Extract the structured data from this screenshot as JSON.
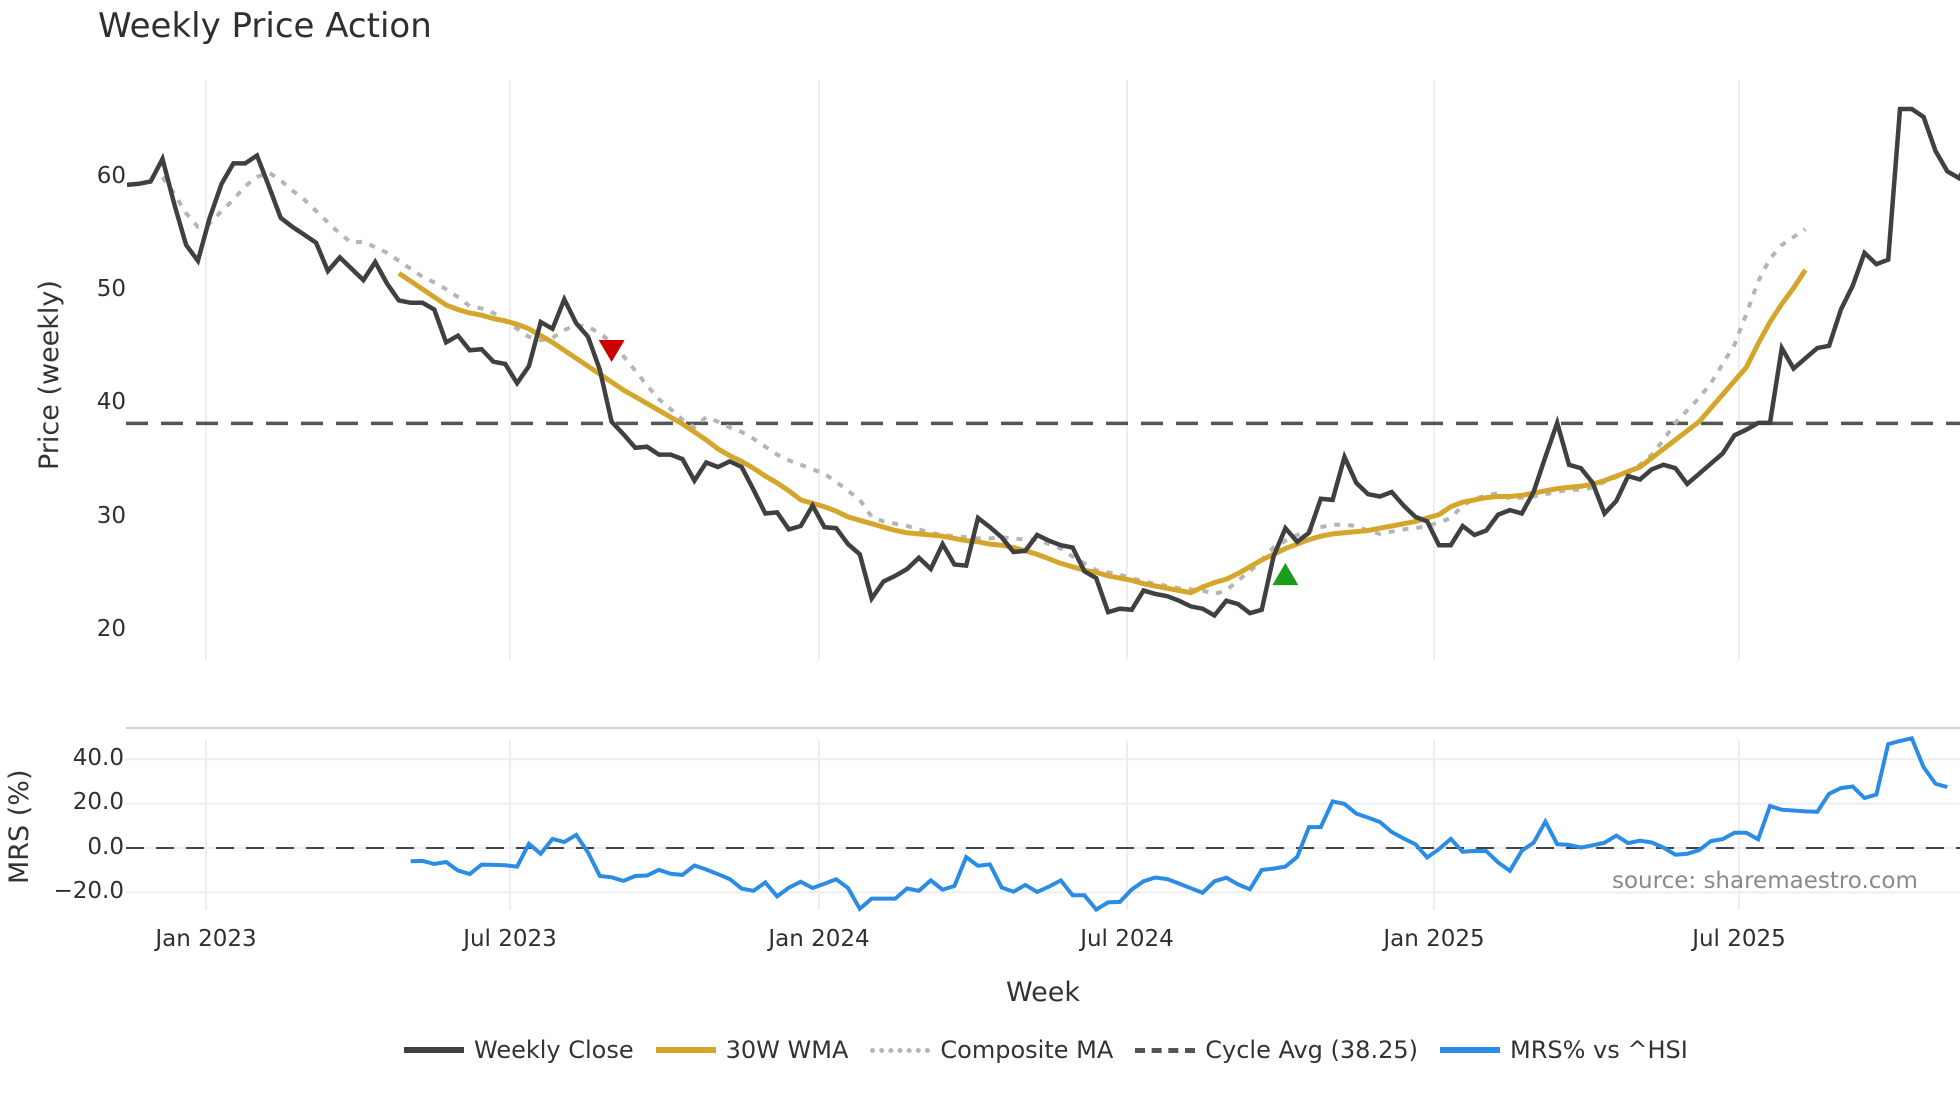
{
  "title": "Weekly Price Action",
  "source_label": "source: sharemaestro.com",
  "price_panel": {
    "ylabel": "Price (weekly)",
    "yticks": [
      "60",
      "50",
      "40",
      "30",
      "20"
    ]
  },
  "mrs_panel": {
    "ylabel": "MRS (%)",
    "yticks": [
      "40.0",
      "20.0",
      "0.0",
      "−20.0"
    ]
  },
  "xaxis": {
    "label": "Week",
    "ticks": [
      "Jan 2023",
      "Jul 2023",
      "Jan 2024",
      "Jul 2024",
      "Jan 2025",
      "Jul 2025"
    ]
  },
  "legend": [
    {
      "label": "Weekly Close",
      "color": "#404040",
      "style": "solid"
    },
    {
      "label": "30W WMA",
      "color": "#d4a72c",
      "style": "solid"
    },
    {
      "label": "Composite MA",
      "color": "#b5b5b5",
      "style": "dotted"
    },
    {
      "label": "Cycle Avg (38.25)",
      "color": "#555555",
      "style": "dashed"
    },
    {
      "label": "MRS% vs ^HSI",
      "color": "#2b8ce6",
      "style": "solid"
    }
  ],
  "chart_data": [
    {
      "type": "line",
      "title": "Weekly Price Action",
      "xlabel": "Week",
      "ylabel": "Price (weekly)",
      "ylim": [
        18.5,
        67
      ],
      "x_ticks": [
        "Jan 2023",
        "Jul 2023",
        "Jan 2024",
        "Jul 2024",
        "Jan 2025",
        "Jul 2025"
      ],
      "grid": "vertical",
      "series": [
        {
          "name": "Weekly Close",
          "start_week": 0,
          "values": [
            59.3,
            59.4,
            59.6,
            61.6,
            57.6,
            54.0,
            52.6,
            56.4,
            59.4,
            61.2,
            61.2,
            61.9,
            59.2,
            56.4,
            55.6,
            54.9,
            54.2,
            51.7,
            52.9,
            51.9,
            50.9,
            52.5,
            50.6,
            49.1,
            48.9,
            48.9,
            48.3,
            45.4,
            46.0,
            44.7,
            44.8,
            43.7,
            43.5,
            41.8,
            43.3,
            47.2,
            46.6,
            49.2,
            47.1,
            45.9,
            43.0,
            38.4,
            37.3,
            36.1,
            36.2,
            35.5,
            35.5,
            35.1,
            33.2,
            34.8,
            34.4,
            34.9,
            34.4,
            32.4,
            30.3,
            30.4,
            28.9,
            29.2,
            31.0,
            29.1,
            29.0,
            27.6,
            26.7,
            22.8,
            24.3,
            24.8,
            25.4,
            26.4,
            25.4,
            27.6,
            25.8,
            25.7,
            29.9,
            29.1,
            28.2,
            26.9,
            27.0,
            28.4,
            27.9,
            27.5,
            27.3,
            25.2,
            24.6,
            21.6,
            21.9,
            21.8,
            23.5,
            23.2,
            23.0,
            22.6,
            22.1,
            21.9,
            21.3,
            22.6,
            22.3,
            21.5,
            21.8,
            26.5,
            29.0,
            27.8,
            28.6,
            31.6,
            31.5,
            35.3,
            33.0,
            32.0,
            31.8,
            32.2,
            31.0,
            30.0,
            29.6,
            27.5,
            27.5,
            29.2,
            28.4,
            28.8,
            30.2,
            30.6,
            30.3,
            32.2,
            35.3,
            38.3,
            34.6,
            34.3,
            33.0,
            30.3,
            31.4,
            33.6,
            33.3,
            34.2,
            34.6,
            34.3,
            32.9,
            33.8,
            34.7,
            35.6,
            37.2,
            37.7,
            38.3,
            38.3,
            44.9,
            43.1,
            44.0,
            44.9,
            45.1,
            48.3,
            50.4,
            53.3,
            52.3,
            52.7,
            66.0,
            66.0,
            65.3,
            62.3,
            60.5,
            59.9,
            61.8
          ]
        },
        {
          "name": "30W WMA",
          "start_week": 23,
          "values": [
            51.5,
            50.8,
            50.1,
            49.4,
            48.7,
            48.3,
            48.0,
            47.8,
            47.5,
            47.3,
            47.0,
            46.6,
            46.0,
            45.4,
            44.7,
            44.0,
            43.3,
            42.6,
            41.9,
            41.2,
            40.6,
            40.0,
            39.4,
            38.8,
            38.2,
            37.5,
            36.8,
            36.0,
            35.4,
            34.9,
            34.3,
            33.6,
            33.0,
            32.3,
            31.5,
            31.2,
            30.9,
            30.5,
            30.0,
            29.7,
            29.4,
            29.1,
            28.8,
            28.6,
            28.5,
            28.4,
            28.3,
            28.1,
            27.9,
            27.8,
            27.6,
            27.5,
            27.3,
            27.0,
            26.7,
            26.3,
            25.9,
            25.6,
            25.3,
            25.1,
            24.8,
            24.6,
            24.4,
            24.1,
            23.9,
            23.7,
            23.5,
            23.3,
            23.8,
            24.2,
            24.5,
            25.0,
            25.6,
            26.2,
            26.7,
            27.2,
            27.6,
            28.0,
            28.3,
            28.5,
            28.6,
            28.7,
            28.8,
            29.0,
            29.2,
            29.4,
            29.6,
            29.9,
            30.2,
            30.9,
            31.3,
            31.5,
            31.7,
            31.8,
            31.8,
            31.9,
            32.1,
            32.3,
            32.5,
            32.6,
            32.7,
            32.9,
            33.2,
            33.6,
            34.0,
            34.4,
            35.2,
            36.0,
            36.8,
            37.6,
            38.4,
            39.6,
            40.8,
            42.0,
            43.2,
            45.3,
            47.2,
            48.8,
            50.2,
            51.8
          ]
        },
        {
          "name": "Composite MA",
          "start_week": 3,
          "values": [
            60.0,
            58.5,
            56.8,
            55.6,
            55.9,
            57.0,
            58.0,
            59.2,
            60.0,
            60.4,
            59.7,
            58.8,
            58.0,
            57.0,
            56.0,
            55.0,
            54.2,
            54.3,
            53.8,
            53.3,
            52.6,
            51.9,
            51.2,
            50.7,
            50.1,
            49.4,
            48.6,
            48.4,
            48.0,
            47.3,
            46.6,
            45.9,
            45.6,
            45.8,
            46.5,
            46.9,
            46.8,
            46.2,
            45.4,
            44.2,
            42.9,
            41.6,
            40.4,
            39.5,
            38.6,
            37.9,
            38.8,
            38.4,
            37.9,
            37.5,
            36.9,
            36.2,
            35.5,
            35.0,
            34.6,
            34.2,
            33.8,
            33.1,
            32.3,
            31.5,
            30.0,
            29.6,
            29.4,
            29.2,
            28.9,
            28.6,
            28.4,
            28.3,
            28.2,
            28.1,
            28.1,
            28.2,
            28.1,
            28.0,
            28.0,
            27.6,
            27.2,
            26.5,
            25.9,
            25.3,
            25.1,
            24.9,
            24.6,
            24.3,
            24.1,
            23.9,
            23.7,
            23.6,
            23.5,
            23.2,
            23.5,
            24.4,
            25.2,
            26.2,
            27.3,
            27.9,
            28.4,
            28.8,
            29.1,
            29.3,
            29.3,
            29.2,
            28.8,
            28.5,
            28.7,
            28.9,
            29.0,
            29.2,
            29.5,
            29.9,
            31.0,
            31.6,
            31.9,
            32.1,
            31.6,
            31.7,
            31.8,
            32.0,
            32.2,
            32.4,
            32.4,
            32.6,
            33.1,
            33.5,
            33.9,
            34.6,
            35.5,
            36.8,
            38.3,
            39.4,
            40.5,
            41.8,
            43.5,
            45.2,
            47.9,
            50.8,
            52.8,
            54.0,
            54.7,
            55.4
          ]
        },
        {
          "name": "Cycle Avg (38.25)",
          "type": "hline",
          "value": 38.25
        }
      ],
      "markers": [
        {
          "type": "sell",
          "shape": "triangle-down",
          "color": "#cc0000",
          "week": 41,
          "price": 44.7
        },
        {
          "type": "buy",
          "shape": "triangle-up",
          "color": "#1a9e1a",
          "week": 98,
          "price": 24.9
        }
      ]
    },
    {
      "type": "line",
      "title": "",
      "xlabel": "Week",
      "ylabel": "MRS (%)",
      "ylim": [
        -30,
        52
      ],
      "y_ticks": [
        40.0,
        20.0,
        0.0,
        -20.0
      ],
      "grid": "horizontal",
      "series": [
        {
          "name": "MRS% vs ^HSI",
          "start_week": 24,
          "values": [
            -6.0,
            -5.8,
            -7.2,
            -6.3,
            -10.2,
            -11.7,
            -7.5,
            -7.6,
            -7.8,
            -8.4,
            1.9,
            -2.6,
            4.1,
            2.7,
            5.9,
            -2.0,
            -12.6,
            -13.2,
            -14.8,
            -12.6,
            -12.4,
            -9.8,
            -11.6,
            -12.1,
            -7.9,
            -9.7,
            -11.8,
            -14.0,
            -18.3,
            -19.3,
            -15.5,
            -21.8,
            -17.9,
            -15.2,
            -18.0,
            -16.1,
            -14.1,
            -18.0,
            -27.4,
            -22.8,
            -22.8,
            -22.8,
            -18.2,
            -19.3,
            -14.6,
            -18.8,
            -17.1,
            -4.1,
            -8.0,
            -7.4,
            -17.8,
            -19.7,
            -16.6,
            -19.8,
            -17.4,
            -14.6,
            -21.3,
            -21.3,
            -27.7,
            -24.5,
            -24.3,
            -18.7,
            -15.0,
            -13.3,
            -14.0,
            -16.0,
            -18.1,
            -20.2,
            -15.0,
            -13.4,
            -16.4,
            -18.6,
            -9.9,
            -9.3,
            -8.4,
            -4.0,
            9.4,
            9.4,
            21.0,
            19.8,
            15.5,
            13.7,
            11.7,
            7.2,
            4.3,
            1.7,
            -4.3,
            -0.5,
            4.1,
            -1.7,
            -1.3,
            -1.4,
            -6.5,
            -10.3,
            -1.2,
            2.4,
            11.9,
            1.7,
            1.4,
            0.2,
            1.2,
            2.4,
            5.6,
            2.2,
            3.3,
            2.5,
            0.2,
            -3.0,
            -2.6,
            -1.0,
            3.1,
            4.0,
            6.9,
            6.9,
            3.9,
            18.9,
            17.2,
            16.9,
            16.5,
            16.3,
            24.4,
            27.0,
            27.7,
            22.5,
            24.1,
            46.8,
            48.2,
            49.4,
            36.4,
            28.9,
            27.5
          ]
        },
        {
          "name": "Zero",
          "type": "hline",
          "value": 0.0
        }
      ]
    }
  ]
}
